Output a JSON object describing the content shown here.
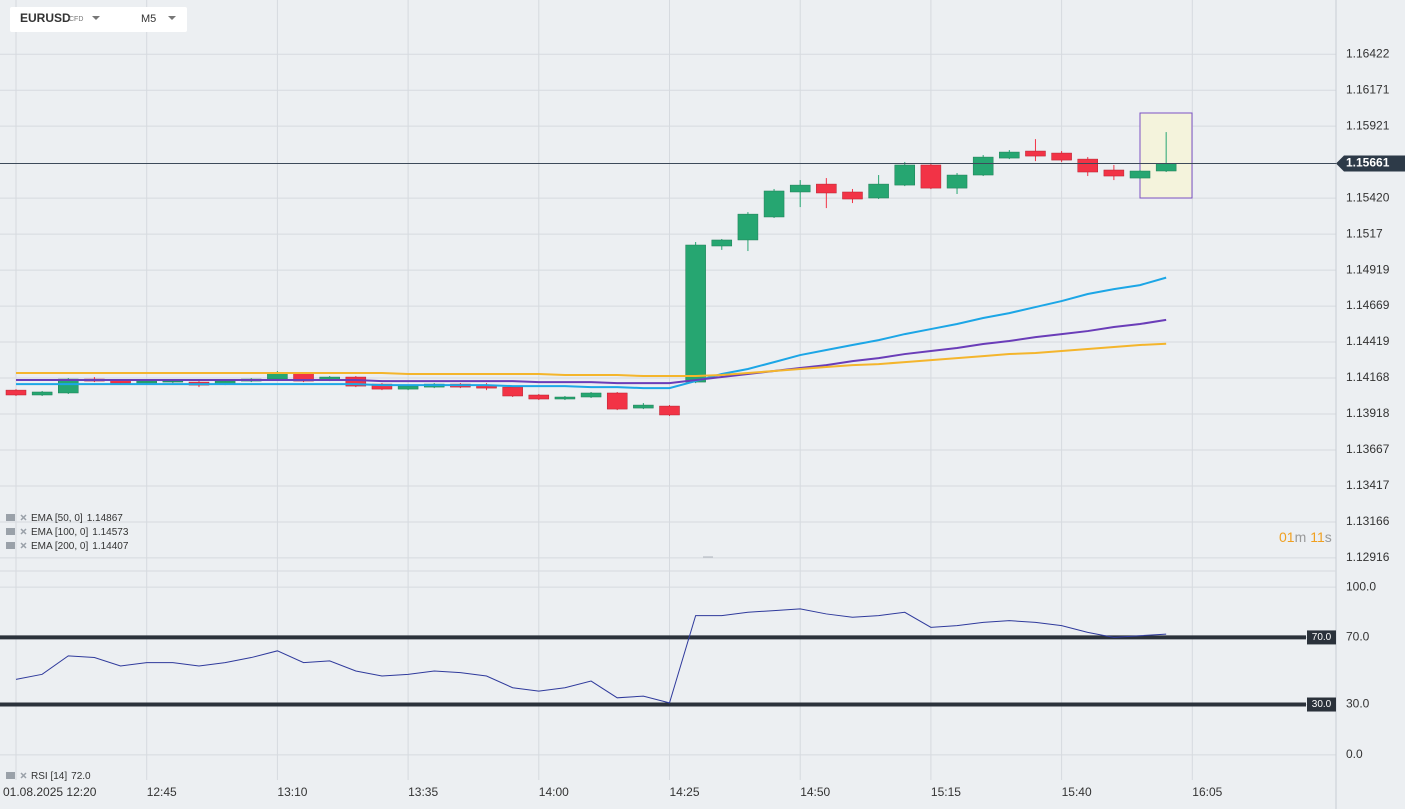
{
  "header": {
    "symbol": "EURUSD",
    "kind": "CFD",
    "timeframe": "M5"
  },
  "countdown": {
    "minutes": "01",
    "minutes_unit": "m",
    "seconds": "11",
    "seconds_unit": "s"
  },
  "chart_data": [
    {
      "type": "candlestick",
      "categories": [
        "01.08.2025 12:20",
        null,
        null,
        null,
        null,
        "12:45",
        null,
        null,
        null,
        null,
        "13:10",
        null,
        null,
        null,
        null,
        "13:35",
        null,
        null,
        null,
        null,
        "14:00",
        null,
        null,
        null,
        null,
        "14:25",
        null,
        null,
        null,
        null,
        "14:50",
        null,
        null,
        null,
        null,
        "15:15",
        null,
        null,
        null,
        null,
        "15:40",
        null,
        null,
        null,
        null,
        "16:05"
      ],
      "open": [
        1.14084,
        1.1405,
        1.14064,
        1.14161,
        1.14154,
        1.14133,
        1.1414,
        1.1414,
        1.14126,
        1.14147,
        1.14161,
        1.14203,
        1.14154,
        1.14175,
        1.14126,
        1.14091,
        1.14105,
        1.14126,
        1.14119,
        1.14105,
        1.1405,
        1.14022,
        1.14036,
        1.14064,
        1.13959,
        1.13973,
        1.1414,
        1.15087,
        1.15129,
        1.15289,
        1.15463,
        1.15518,
        1.15463,
        1.15421,
        1.15511,
        1.15651,
        1.1549,
        1.15581,
        1.15699,
        1.15748,
        1.15734,
        1.15692,
        1.15616,
        1.1556,
        1.15609,
        null
      ],
      "high": [
        1.14091,
        1.14078,
        1.14168,
        1.14175,
        1.14161,
        1.14154,
        1.14154,
        1.14147,
        1.14154,
        1.14168,
        1.14217,
        1.1421,
        1.14182,
        1.14182,
        1.14133,
        1.14119,
        1.14133,
        1.14133,
        1.14133,
        1.14112,
        1.14057,
        1.14043,
        1.14071,
        1.14071,
        1.13994,
        1.1398,
        1.15115,
        1.15136,
        1.15323,
        1.15484,
        1.15546,
        1.1556,
        1.15484,
        1.15581,
        1.15672,
        1.15658,
        1.15595,
        1.1572,
        1.15755,
        1.15831,
        1.15748,
        1.15706,
        1.15651,
        1.15616,
        1.1588,
        null
      ],
      "low": [
        1.14043,
        1.14043,
        1.14057,
        1.1414,
        1.14126,
        1.14126,
        1.14133,
        1.14105,
        1.14119,
        1.1414,
        1.14154,
        1.1414,
        1.14147,
        1.14105,
        1.14084,
        1.14084,
        1.14098,
        1.14098,
        1.14084,
        1.14036,
        1.14015,
        1.14015,
        1.14029,
        1.13945,
        1.13952,
        1.13904,
        1.14133,
        1.1506,
        1.15052,
        1.15282,
        1.15358,
        1.15351,
        1.15386,
        1.15414,
        1.15504,
        1.15483,
        1.15449,
        1.15574,
        1.15692,
        1.15678,
        1.15671,
        1.15574,
        1.15546,
        1.15553,
        1.15602,
        null
      ],
      "close": [
        1.1405,
        1.14071,
        1.14161,
        1.14147,
        1.14133,
        1.14147,
        1.14147,
        1.14119,
        1.14147,
        1.14161,
        1.14203,
        1.14147,
        1.14175,
        1.14112,
        1.14091,
        1.14112,
        1.14126,
        1.14105,
        1.14098,
        1.14043,
        1.14022,
        1.14036,
        1.14064,
        1.13952,
        1.1398,
        1.13911,
        1.15094,
        1.15129,
        1.15309,
        1.1547,
        1.15511,
        1.15456,
        1.15414,
        1.15518,
        1.15651,
        1.1549,
        1.15581,
        1.15706,
        1.15741,
        1.15713,
        1.15685,
        1.15602,
        1.15574,
        1.15609,
        1.15661,
        null
      ],
      "up_color": "#26a671",
      "down_color": "#f23346",
      "series": [
        {
          "name": "EMA [50, 0]",
          "color": "#1ca6e6",
          "values": [
            1.14126,
            1.14126,
            1.14126,
            1.14126,
            1.14126,
            1.14126,
            1.14126,
            1.14126,
            1.14126,
            1.14126,
            1.14126,
            1.14126,
            1.14126,
            1.14126,
            1.14119,
            1.14119,
            1.14119,
            1.14119,
            1.14119,
            1.14112,
            1.14112,
            1.14112,
            1.14105,
            1.14105,
            1.14098,
            1.14098,
            1.14147,
            1.14196,
            1.14231,
            1.14279,
            1.14328,
            1.14363,
            1.14398,
            1.14432,
            1.14474,
            1.14509,
            1.14544,
            1.14586,
            1.1462,
            1.14662,
            1.14704,
            1.14753,
            1.14787,
            1.14815,
            1.14867,
            null
          ]
        },
        {
          "name": "EMA [100, 0]",
          "color": "#6a3db8",
          "values": [
            1.14154,
            1.14154,
            1.14154,
            1.14154,
            1.14154,
            1.14154,
            1.14154,
            1.14154,
            1.14154,
            1.14154,
            1.14154,
            1.14154,
            1.14154,
            1.14154,
            1.14147,
            1.14147,
            1.14147,
            1.14147,
            1.14147,
            1.14147,
            1.1414,
            1.1414,
            1.1414,
            1.14133,
            1.14133,
            1.14133,
            1.14154,
            1.14175,
            1.14196,
            1.14217,
            1.14238,
            1.14258,
            1.14286,
            1.14307,
            1.14335,
            1.14356,
            1.14377,
            1.14405,
            1.14426,
            1.14453,
            1.14474,
            1.14495,
            1.14523,
            1.14544,
            1.14573,
            null
          ]
        },
        {
          "name": "EMA [200, 0]",
          "color": "#f4b52c",
          "values": [
            1.14203,
            1.14203,
            1.14203,
            1.14203,
            1.14203,
            1.14203,
            1.14203,
            1.14203,
            1.14203,
            1.14203,
            1.14203,
            1.14203,
            1.14203,
            1.14203,
            1.14203,
            1.14196,
            1.14196,
            1.14196,
            1.14196,
            1.14196,
            1.14196,
            1.14189,
            1.14189,
            1.14189,
            1.14182,
            1.14182,
            1.14182,
            1.14189,
            1.14203,
            1.14217,
            1.14231,
            1.14245,
            1.14258,
            1.14265,
            1.14279,
            1.14293,
            1.14307,
            1.14321,
            1.14335,
            1.14342,
            1.14356,
            1.1437,
            1.14384,
            1.14398,
            1.14407,
            null
          ]
        }
      ],
      "last_price": 1.15661,
      "ylim": [
        1.12832,
        1.16674
      ],
      "yticks": [
        1.12916,
        1.13166,
        1.13417,
        1.13667,
        1.13918,
        1.14168,
        1.14419,
        1.14669,
        1.14919,
        1.1517,
        {
          "value": 1.1542,
          "label": "1.15420"
        },
        1.15921,
        1.16171,
        1.16422
      ],
      "grid": true
    },
    {
      "type": "line",
      "series": [
        {
          "name": "RSI [14]",
          "color": "#2f3a9c",
          "values": [
            45,
            48,
            59,
            58,
            53,
            55,
            55,
            53,
            55,
            58,
            62,
            55,
            56,
            50,
            47,
            48,
            50,
            49,
            47,
            40,
            38,
            40,
            44,
            34,
            35,
            31,
            83,
            83,
            85,
            86,
            87,
            84,
            82,
            83,
            85,
            76,
            77,
            79,
            80,
            79,
            77,
            73,
            70,
            71,
            72,
            null
          ],
          "value_labels": [
            null,
            null,
            null,
            null,
            null,
            null,
            null,
            null,
            null,
            null,
            null,
            null,
            null,
            null,
            null,
            null,
            null,
            null,
            null,
            null,
            null,
            null,
            null,
            null,
            null,
            null,
            null,
            null,
            null,
            null,
            null,
            null,
            null,
            null,
            null,
            null,
            null,
            null,
            null,
            null,
            null,
            null,
            null,
            null,
            "72.0",
            null
          ]
        }
      ],
      "levels": [
        {
          "value": 70,
          "label": "70.0"
        },
        {
          "value": 30,
          "label": "30.0"
        }
      ],
      "ylim": [
        -15,
        109
      ],
      "yticks": [
        {
          "value": 100,
          "label": "100.0"
        },
        {
          "value": 70,
          "label": "70.0"
        },
        {
          "value": 30,
          "label": "30.0"
        },
        {
          "value": 0,
          "label": "0.0"
        }
      ]
    }
  ]
}
